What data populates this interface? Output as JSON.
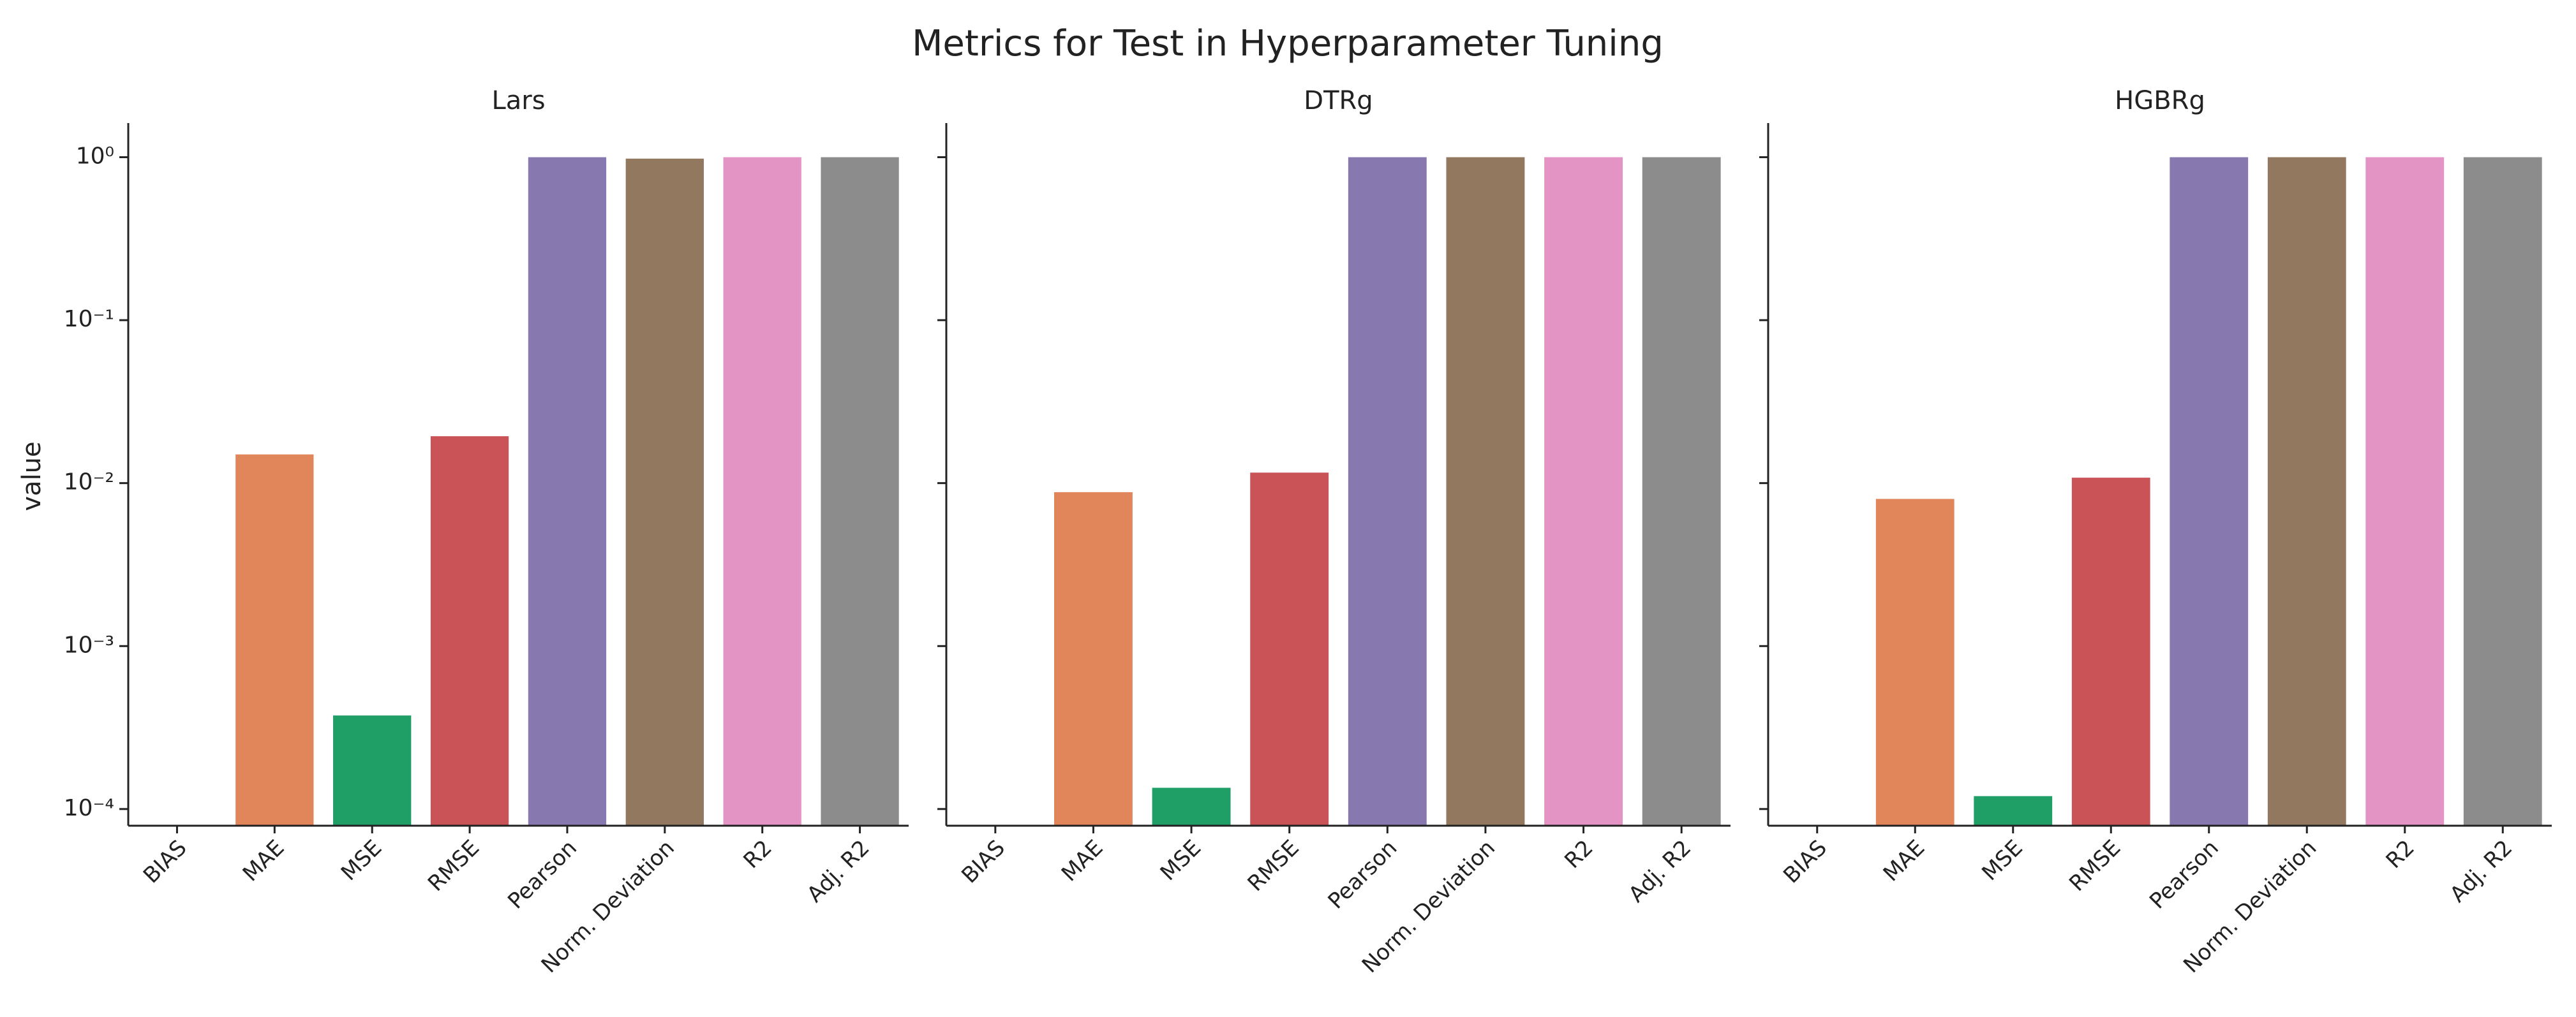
{
  "title": "Metrics for Test in Hyperparameter Tuning",
  "chart_data": [
    {
      "type": "bar",
      "title": "Lars",
      "ylabel": "value",
      "log_scale": true,
      "categories": [
        "BIAS",
        "MAE",
        "MSE",
        "RMSE",
        "Pearson",
        "Norm. Deviation",
        "R2",
        "Adj. R2"
      ],
      "values": [
        null,
        0.015,
        0.000375,
        0.0194,
        1.0,
        0.98,
        1.0,
        1.0
      ],
      "colors": [
        "#4c72b0",
        "#e1865a",
        "#1f9e66",
        "#c95357",
        "#8878b0",
        "#937860",
        "#e394c4",
        "#8c8c8c"
      ],
      "ylim": [
        7.9e-05,
        1.62
      ],
      "yticks": [
        {
          "value": 1,
          "label": "10⁰"
        },
        {
          "value": 0.1,
          "label": "10⁻¹"
        },
        {
          "value": 0.01,
          "label": "10⁻²"
        },
        {
          "value": 0.001,
          "label": "10⁻³"
        },
        {
          "value": 0.0001,
          "label": "10⁻⁴"
        }
      ]
    },
    {
      "type": "bar",
      "title": "DTRg",
      "log_scale": true,
      "categories": [
        "BIAS",
        "MAE",
        "MSE",
        "RMSE",
        "Pearson",
        "Norm. Deviation",
        "R2",
        "Adj. R2"
      ],
      "values": [
        null,
        0.0088,
        0.000135,
        0.0116,
        1.0,
        1.0,
        1.0,
        1.0
      ],
      "colors": [
        "#4c72b0",
        "#e1865a",
        "#1f9e66",
        "#c95357",
        "#8878b0",
        "#937860",
        "#e394c4",
        "#8c8c8c"
      ]
    },
    {
      "type": "bar",
      "title": "HGBRg",
      "log_scale": true,
      "categories": [
        "BIAS",
        "MAE",
        "MSE",
        "RMSE",
        "Pearson",
        "Norm. Deviation",
        "R2",
        "Adj. R2"
      ],
      "values": [
        null,
        0.008,
        0.00012,
        0.0108,
        1.0,
        1.0,
        1.0,
        1.0
      ],
      "colors": [
        "#4c72b0",
        "#e1865a",
        "#1f9e66",
        "#c95357",
        "#8878b0",
        "#937860",
        "#e394c4",
        "#8c8c8c"
      ]
    }
  ]
}
